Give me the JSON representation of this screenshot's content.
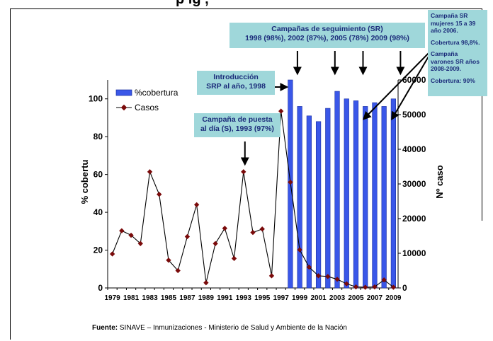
{
  "title_fragment": "p      ig   ,",
  "chart_data": {
    "type": "bar",
    "x": [
      1979,
      1980,
      1981,
      1982,
      1983,
      1984,
      1985,
      1986,
      1987,
      1988,
      1989,
      1990,
      1991,
      1992,
      1993,
      1994,
      1995,
      1996,
      1997,
      1998,
      1999,
      2000,
      2001,
      2002,
      2003,
      2004,
      2005,
      2006,
      2007,
      2008,
      2009
    ],
    "x_ticks": [
      "1979",
      "1981",
      "1983",
      "1985",
      "1987",
      "1989",
      "1991",
      "1993",
      "1995",
      "1997",
      "1999",
      "2001",
      "2003",
      "2005",
      "2007",
      "2009"
    ],
    "y_ticks": [
      "0",
      "20",
      "40",
      "60",
      "80",
      "100"
    ],
    "y2_ticks": [
      "0",
      "10000",
      "20000",
      "30000",
      "40000",
      "50000",
      "60000"
    ],
    "ylabel": "% cobertu",
    "y2label": "Nº caso",
    "ylim": [
      0,
      110
    ],
    "y2lim": [
      0,
      60000
    ],
    "legend_position": "top-left",
    "series": [
      {
        "name": "%cobertura",
        "kind": "bar",
        "axis": "left",
        "color": "#3a57e8",
        "x": [
          1998,
          1999,
          2000,
          2001,
          2002,
          2003,
          2004,
          2005,
          2006,
          2007,
          2008,
          2009
        ],
        "values": [
          110,
          96,
          91,
          88,
          95,
          104,
          100,
          99,
          96,
          98,
          96,
          100
        ]
      },
      {
        "name": "Casos",
        "kind": "line",
        "axis": "right",
        "color": "#000000",
        "marker_color": "#7a0a0a",
        "x": [
          1979,
          1980,
          1981,
          1982,
          1983,
          1984,
          1985,
          1986,
          1987,
          1988,
          1989,
          1990,
          1991,
          1992,
          1993,
          1994,
          1995,
          1996,
          1997,
          1998,
          1999,
          2000,
          2001,
          2002,
          2003,
          2004,
          2005,
          2006,
          2007,
          2008,
          2009
        ],
        "values": [
          9800,
          16500,
          15200,
          12800,
          33500,
          27000,
          8000,
          5000,
          14800,
          24000,
          1500,
          12800,
          17200,
          8500,
          33500,
          16000,
          17000,
          3500,
          51000,
          30500,
          11000,
          6000,
          3500,
          3300,
          2500,
          1200,
          300,
          200,
          300,
          2300,
          200
        ]
      }
    ]
  },
  "annotations": {
    "seguimiento": {
      "line1": "Campañas de seguimiento (SR)",
      "line2": "1998 (98%), 2002 (87%), 2005 (78%) 2009 (98%)"
    },
    "srp": {
      "line1": "Introducción",
      "line2": "SRP al año, 1998"
    },
    "puesta": {
      "line1": "Campaña de puesta",
      "line2": "al día (S), 1993 (97%)"
    },
    "side": {
      "l1": "Campaña SR",
      "l2": "mujeres 15 a 39",
      "l3": "año 2006.",
      "l4": "Cobertura 98,8%.",
      "l5": "Campaña",
      "l6": "varones SR años",
      "l7": "2008-2009.",
      "l8": "Cobertura: 90%"
    }
  },
  "footer": {
    "label": "Fuente:",
    "text": " SINAVE – Inmunizaciones -  Ministerio de Salud y Ambiente de la Nación"
  },
  "colors": {
    "note_bg": "#9fd7da",
    "note_text": "#1b2b7a",
    "bar": "#3a57e8",
    "marker": "#7a0a0a"
  }
}
